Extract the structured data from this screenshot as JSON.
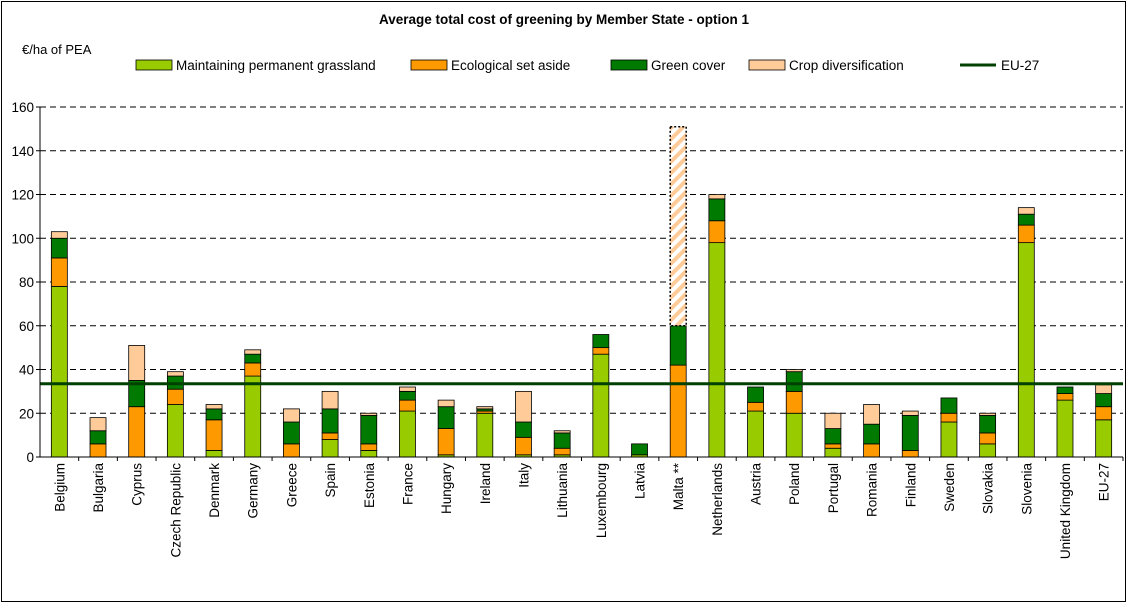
{
  "chart_data": {
    "type": "bar",
    "stacked": true,
    "title": "Average total cost of greening by Member State - option 1",
    "ylabel": "€/ha of PEA",
    "ylim": [
      0,
      160
    ],
    "yticks": [
      0,
      20,
      40,
      60,
      80,
      100,
      120,
      140,
      160
    ],
    "grid": "horizontal dashed",
    "legend_position": "top",
    "categories": [
      "Belgium",
      "Bulgaria",
      "Cyprus",
      "Czech Republic",
      "Denmark",
      "Germany",
      "Greece",
      "Spain",
      "Estonia",
      "France",
      "Hungary",
      "Ireland",
      "Italy",
      "Lithuania",
      "Luxembourg",
      "Latvia",
      "Malta **",
      "Netherlands",
      "Austria",
      "Poland",
      "Portugal",
      "Romania",
      "Finland",
      "Sweden",
      "Slovakia",
      "Slovenia",
      "United Kingdom",
      "EU-27"
    ],
    "series": [
      {
        "name": "Maintaining permanent grassland",
        "color": "#99CC00",
        "values": [
          78,
          0,
          0,
          24,
          3,
          37,
          0,
          8,
          3,
          21,
          1,
          20,
          1,
          1,
          47,
          1,
          0,
          98,
          21,
          20,
          4,
          0,
          0,
          16,
          6,
          98,
          26,
          17
        ]
      },
      {
        "name": "Ecological set aside",
        "color": "#FF9900",
        "values": [
          13,
          6,
          23,
          7,
          14,
          6,
          6,
          3,
          3,
          5,
          12,
          1,
          8,
          3,
          3,
          0,
          42,
          10,
          4,
          10,
          2,
          6,
          3,
          4,
          5,
          8,
          3,
          6
        ]
      },
      {
        "name": "Green cover",
        "color": "#007A00",
        "values": [
          9,
          6,
          12,
          6,
          5,
          4,
          10,
          11,
          13,
          4,
          10,
          1,
          7,
          7,
          6,
          5,
          18,
          10,
          7,
          9,
          7,
          9,
          16,
          7,
          8,
          5,
          3,
          6
        ]
      },
      {
        "name": "Crop diversification",
        "color": "#FFCC99",
        "values": [
          3,
          6,
          16,
          2,
          2,
          2,
          6,
          8,
          1,
          2,
          3,
          1,
          14,
          1,
          0,
          0,
          0,
          2,
          0,
          1,
          7,
          9,
          2,
          0,
          1,
          3,
          0,
          4
        ]
      }
    ],
    "malta_extension": {
      "from": 60,
      "to": 151,
      "color": "#FFCC99",
      "style": "hatched, dotted outline"
    },
    "eu27_line": {
      "name": "EU-27",
      "value": 33.5,
      "color": "#004000"
    }
  }
}
